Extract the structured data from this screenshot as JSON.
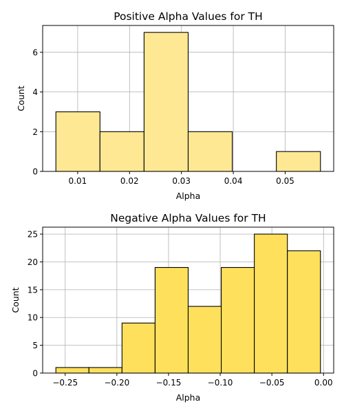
{
  "chart_data": [
    {
      "type": "bar",
      "title": "Positive Alpha Values for TH",
      "xlabel": "Alpha",
      "ylabel": "Count",
      "bin_edges": [
        0.0058,
        0.0143,
        0.0228,
        0.0313,
        0.0398,
        0.0483,
        0.0568
      ],
      "values": [
        3,
        2,
        7,
        2,
        0,
        1
      ],
      "xlim": [
        0.00325,
        0.05935
      ],
      "ylim": [
        0,
        7.35
      ],
      "xticks": [
        0.01,
        0.02,
        0.03,
        0.04,
        0.05
      ],
      "xtick_labels": [
        "0.01",
        "0.02",
        "0.03",
        "0.04",
        "0.05"
      ],
      "yticks": [
        0,
        2,
        4,
        6
      ],
      "ytick_labels": [
        "0",
        "2",
        "4",
        "6"
      ],
      "bar_color": "#ffe894",
      "grid": true
    },
    {
      "type": "bar",
      "title": "Negative Alpha Values for TH",
      "xlabel": "Alpha",
      "ylabel": "Count",
      "bin_edges": [
        -0.259,
        -0.227,
        -0.195,
        -0.163,
        -0.131,
        -0.099,
        -0.067,
        -0.035,
        -0.003
      ],
      "values": [
        1,
        1,
        9,
        19,
        12,
        19,
        25,
        22
      ],
      "xlim": [
        -0.2718,
        0.0098
      ],
      "ylim": [
        0,
        26.25
      ],
      "xticks": [
        -0.25,
        -0.2,
        -0.15,
        -0.1,
        -0.05,
        0.0
      ],
      "xtick_labels": [
        "−0.25",
        "−0.20",
        "−0.15",
        "−0.10",
        "−0.05",
        "0.00"
      ],
      "yticks": [
        0,
        5,
        10,
        15,
        20,
        25
      ],
      "ytick_labels": [
        "0",
        "5",
        "10",
        "15",
        "20",
        "25"
      ],
      "bar_color": "#ffe05c",
      "grid": true
    }
  ],
  "colors": {
    "grid": "#b0b0b0",
    "edge": "#000000",
    "axis": "#000000"
  }
}
